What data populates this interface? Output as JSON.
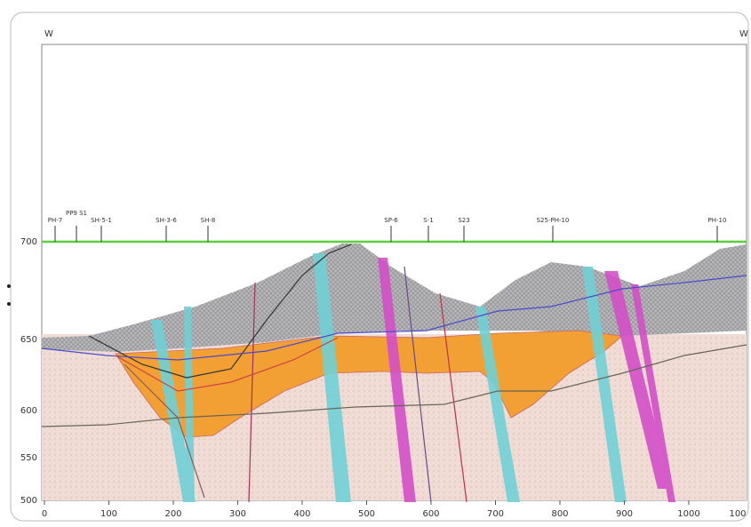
{
  "header": {
    "left": "W",
    "right": "W"
  },
  "x_axis": {
    "labels": [
      "0",
      "100",
      "200",
      "300",
      "400",
      "500",
      "600",
      "700",
      "800",
      "900",
      "1000",
      "100"
    ]
  },
  "y_axis": {
    "labels": [
      "700",
      "650",
      "600",
      "550",
      "500"
    ]
  },
  "boreholes": [
    {
      "label": "PH-7"
    },
    {
      "label": "PP9 S1"
    },
    {
      "label": "SH-5-1"
    },
    {
      "label": "SH-3-6"
    },
    {
      "label": "SH-8"
    },
    {
      "label": "SP-6"
    },
    {
      "label": "S-1"
    },
    {
      "label": "S23"
    },
    {
      "label": "S25-PH-10"
    },
    {
      "label": "PH-10"
    }
  ]
}
